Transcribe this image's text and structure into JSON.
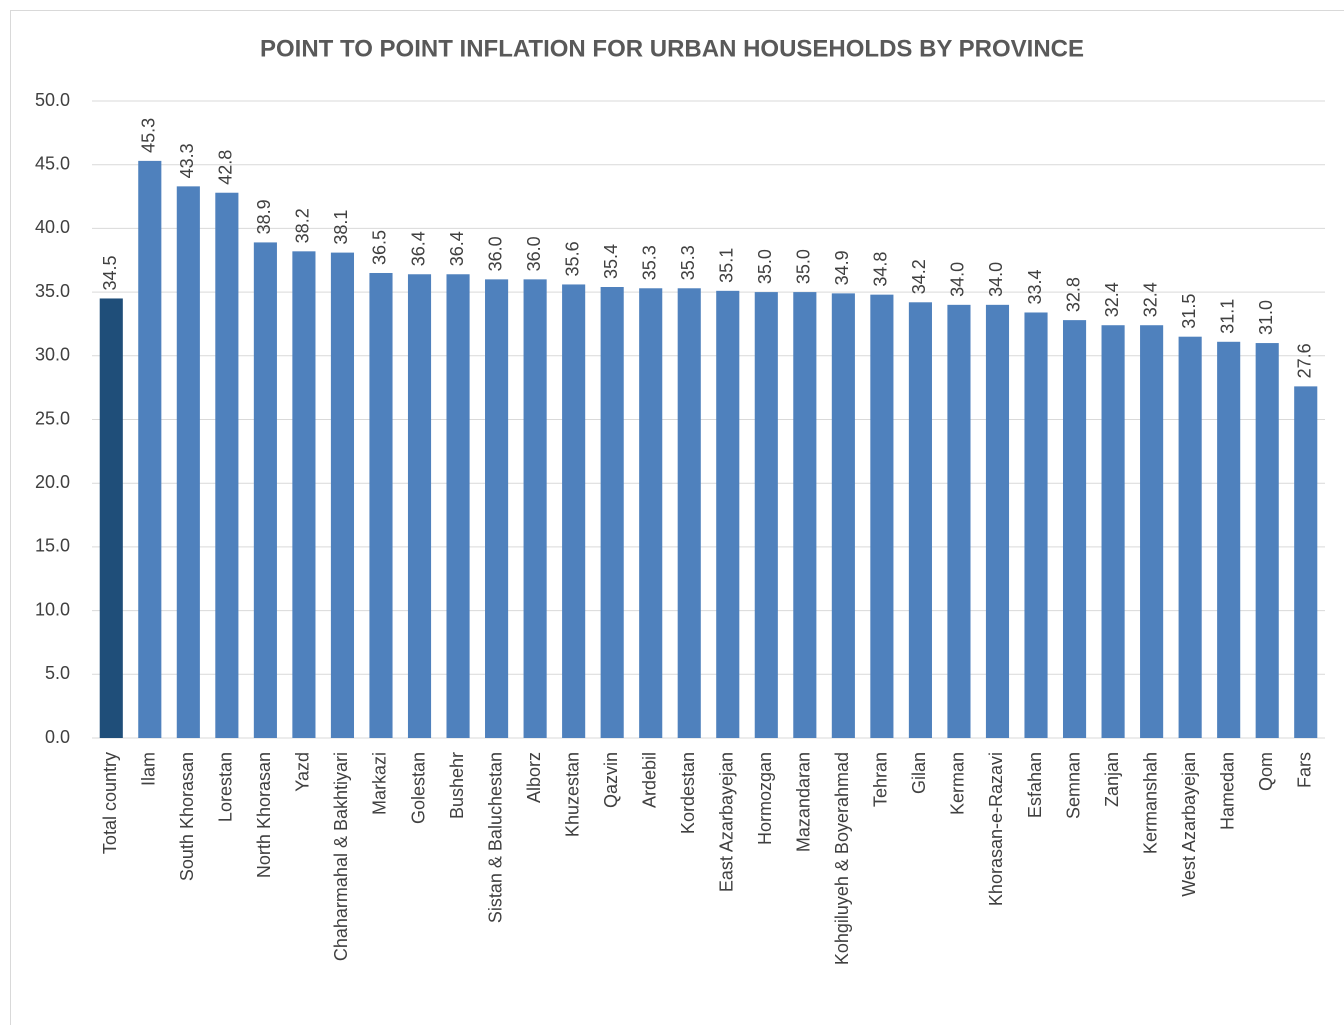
{
  "chart_data": {
    "type": "bar",
    "title": "POINT TO POINT INFLATION FOR URBAN HOUSEHOLDS BY PROVINCE",
    "categories": [
      "Total country",
      "Ilam",
      "South Khorasan",
      "Lorestan",
      "North Khorasan",
      "Yazd",
      "Chaharmahal & Bakhtiyari",
      "Markazi",
      "Golestan",
      "Bushehr",
      "Sistan & Baluchestan",
      "Alborz",
      "Khuzestan",
      "Qazvin",
      "Ardebil",
      "Kordestan",
      "East Azarbayejan",
      "Hormozgan",
      "Mazandaran",
      "Kohgiluyeh & Boyerahmad",
      "Tehran",
      "Gilan",
      "Kerman",
      "Khorasan-e-Razavi",
      "Esfahan",
      "Semnan",
      "Zanjan",
      "Kermanshah",
      "West Azarbayejan",
      "Hamedan",
      "Qom",
      "Fars"
    ],
    "values": [
      34.5,
      45.3,
      43.3,
      42.8,
      38.9,
      38.2,
      38.1,
      36.5,
      36.4,
      36.4,
      36,
      36,
      35.6,
      35.4,
      35.3,
      35.3,
      35.1,
      35,
      35,
      34.9,
      34.8,
      34.2,
      34,
      34,
      33.4,
      32.8,
      32.4,
      32.4,
      31.5,
      31.1,
      31,
      27.6
    ],
    "value_labels": [
      "34.5",
      "45.3",
      "43.3",
      "42.8",
      "38.9",
      "38.2",
      "38.1",
      "36.5",
      "36.4",
      "36.4",
      "36.0",
      "36.0",
      "35.6",
      "35.4",
      "35.3",
      "35.3",
      "35.1",
      "35.0",
      "35.0",
      "34.9",
      "34.8",
      "34.2",
      "34.0",
      "34.0",
      "33.4",
      "32.8",
      "32.4",
      "32.4",
      "31.5",
      "31.1",
      "31.0",
      "27.6"
    ],
    "colors": [
      "#1f4e79",
      "#4f81bd",
      "#4f81bd",
      "#4f81bd",
      "#4f81bd",
      "#4f81bd",
      "#4f81bd",
      "#4f81bd",
      "#4f81bd",
      "#4f81bd",
      "#4f81bd",
      "#4f81bd",
      "#4f81bd",
      "#4f81bd",
      "#4f81bd",
      "#4f81bd",
      "#4f81bd",
      "#4f81bd",
      "#4f81bd",
      "#4f81bd",
      "#4f81bd",
      "#4f81bd",
      "#4f81bd",
      "#4f81bd",
      "#4f81bd",
      "#4f81bd",
      "#4f81bd",
      "#4f81bd",
      "#4f81bd",
      "#4f81bd",
      "#4f81bd",
      "#4f81bd"
    ],
    "ylim": [
      0,
      50
    ],
    "yticks": [
      {
        "value": 0,
        "label": "0.0"
      },
      {
        "value": 5,
        "label": "5.0"
      },
      {
        "value": 10,
        "label": "10.0"
      },
      {
        "value": 15,
        "label": "15.0"
      },
      {
        "value": 20,
        "label": "20.0"
      },
      {
        "value": 25,
        "label": "25.0"
      },
      {
        "value": 30,
        "label": "30.0"
      },
      {
        "value": 35,
        "label": "35.0"
      },
      {
        "value": 40,
        "label": "40.0"
      },
      {
        "value": 45,
        "label": "45.0"
      },
      {
        "value": 50,
        "label": "50.0"
      }
    ],
    "grid": true
  }
}
